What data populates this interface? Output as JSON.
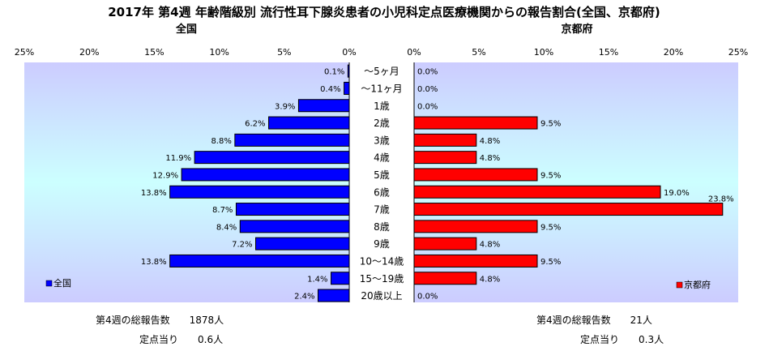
{
  "chart_data": {
    "type": "bar",
    "title": "2017年 第4週 年齢階級別 流行性耳下腺炎患者の小児科定点医療機関からの報告割合(全国、京都府)",
    "categories": [
      "～5ヶ月",
      "～11ヶ月",
      "1歳",
      "2歳",
      "3歳",
      "4歳",
      "5歳",
      "6歳",
      "7歳",
      "8歳",
      "9歳",
      "10～14歳",
      "15～19歳",
      "20歳以上"
    ],
    "xlim": [
      0,
      25
    ],
    "ticks": [
      "25%",
      "20%",
      "15%",
      "10%",
      "5%",
      "0%"
    ],
    "ticks_right": [
      "0%",
      "5%",
      "10%",
      "15%",
      "20%",
      "25%"
    ],
    "series": [
      {
        "name": "全国",
        "panel_title": "全国",
        "color": "#0000ff",
        "values": [
          0.1,
          0.4,
          3.9,
          6.2,
          8.8,
          11.9,
          12.9,
          13.8,
          8.7,
          8.4,
          7.2,
          13.8,
          1.4,
          2.4
        ],
        "labels": [
          "0.1%",
          "0.4%",
          "3.9%",
          "6.2%",
          "8.8%",
          "11.9%",
          "12.9%",
          "13.8%",
          "8.7%",
          "8.4%",
          "7.2%",
          "13.8%",
          "1.4%",
          "2.4%"
        ]
      },
      {
        "name": "京都府",
        "panel_title": "京都府",
        "color": "#ff0000",
        "values": [
          0.0,
          0.0,
          0.0,
          9.5,
          4.8,
          4.8,
          9.5,
          19.0,
          23.8,
          9.5,
          4.8,
          9.5,
          4.8,
          0.0
        ],
        "labels": [
          "0.0%",
          "0.0%",
          "0.0%",
          "9.5%",
          "4.8%",
          "4.8%",
          "9.5%",
          "19.0%",
          "23.8%",
          "9.5%",
          "4.8%",
          "9.5%",
          "4.8%",
          "0.0%"
        ]
      }
    ],
    "legend": [
      "bottom-left",
      "bottom-right"
    ]
  },
  "footer": {
    "national_total": "第4週の総報告数　　1878人",
    "national_per_site": "定点当り　　0.6人",
    "kyoto_total": "第4週の総報告数　　21人",
    "kyoto_per_site": "定点当り　　0.3人"
  }
}
